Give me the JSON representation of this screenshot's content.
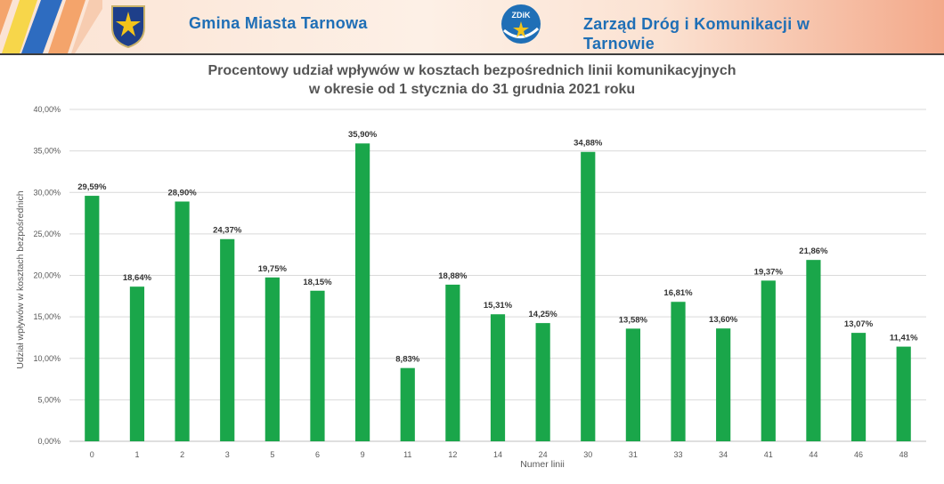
{
  "header": {
    "left_title": "Gmina Miasta Tarnowa",
    "right_title": "Zarząd Dróg i Komunikacji w Tarnowie",
    "right_logo_text": "ZDiK",
    "brand_color": "#1f6fb6"
  },
  "chart_data": {
    "type": "bar",
    "title_line1": "Procentowy udział wpływów w kosztach bezpośrednich linii komunikacyjnych",
    "title_line2": "w okresie od 1 stycznia do 31 grudnia 2021 roku",
    "xlabel": "Numer linii",
    "ylabel": "Udział wpływów w kosztach bezpośrednich",
    "ylim": [
      0,
      40
    ],
    "yticks": [
      0,
      5,
      10,
      15,
      20,
      25,
      30,
      35,
      40
    ],
    "ytick_labels": [
      "0,00%",
      "5,00%",
      "10,00%",
      "15,00%",
      "20,00%",
      "25,00%",
      "30,00%",
      "35,00%",
      "40,00%"
    ],
    "categories": [
      "0",
      "1",
      "2",
      "3",
      "5",
      "6",
      "9",
      "11",
      "12",
      "14",
      "24",
      "30",
      "31",
      "33",
      "34",
      "41",
      "44",
      "46",
      "48"
    ],
    "values": [
      29.59,
      18.64,
      28.9,
      24.37,
      19.75,
      18.15,
      35.9,
      8.83,
      18.88,
      15.31,
      14.25,
      34.88,
      13.58,
      16.81,
      13.6,
      19.37,
      21.86,
      13.07,
      11.41
    ],
    "data_labels": [
      "29,59%",
      "18,64%",
      "28,90%",
      "24,37%",
      "19,75%",
      "18,15%",
      "35,90%",
      "8,83%",
      "18,88%",
      "15,31%",
      "14,25%",
      "34,88%",
      "13,58%",
      "16,81%",
      "13,60%",
      "19,37%",
      "21,86%",
      "13,07%",
      "11,41%"
    ],
    "bar_color": "#1aa64a",
    "grid": true
  }
}
